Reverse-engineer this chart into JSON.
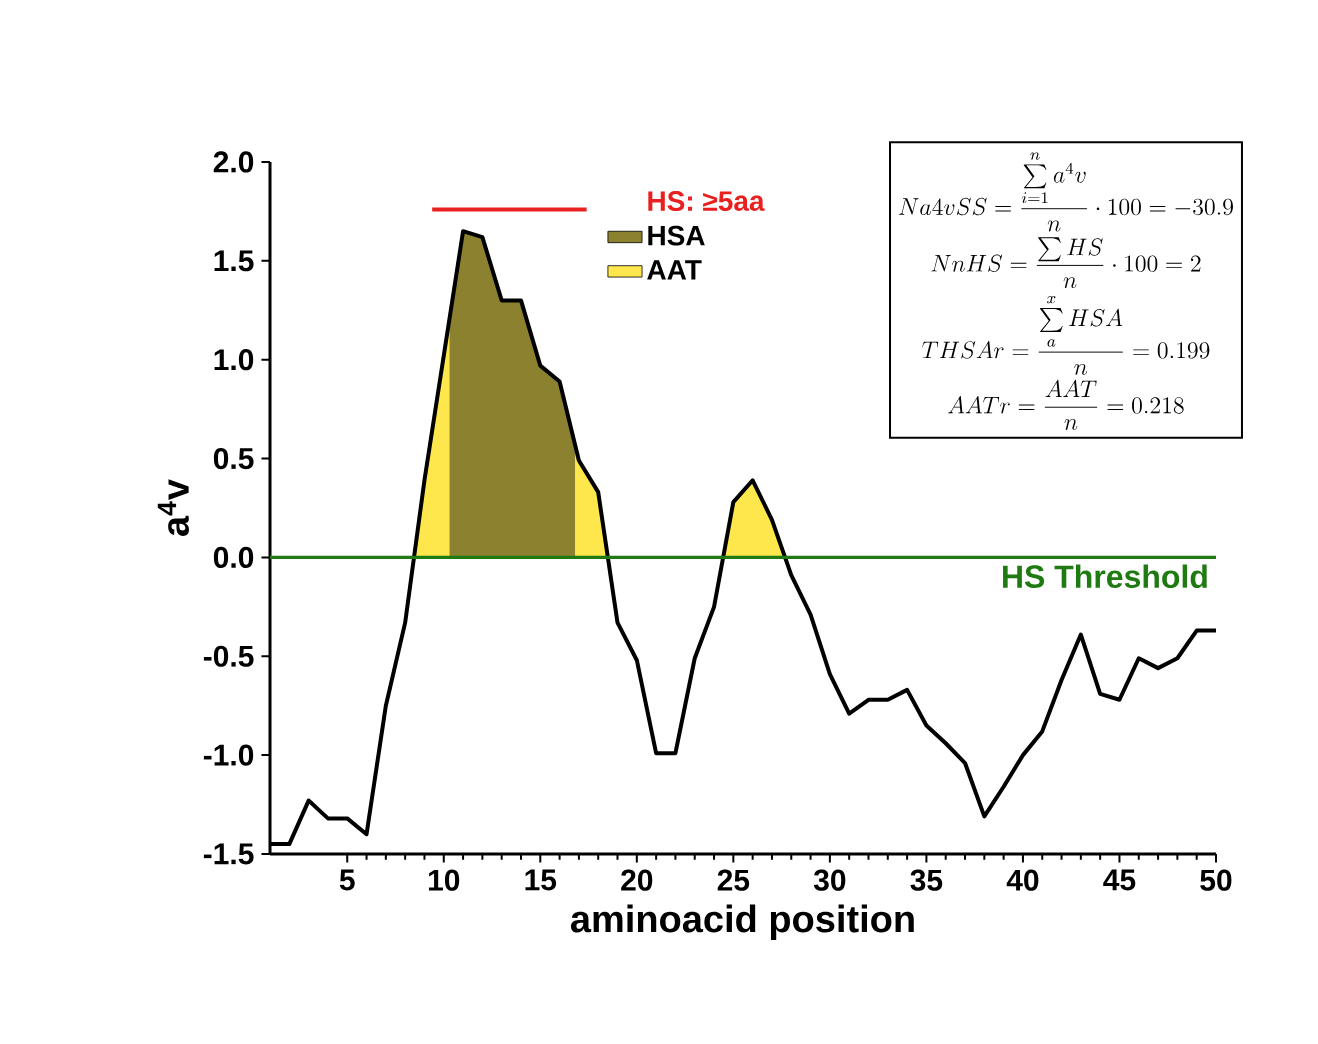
{
  "chart_data": {
    "type": "line",
    "xlabel": "aminoacid position",
    "ylabel": "a$^{4}$v",
    "x": [
      1,
      2,
      3,
      4,
      5,
      6,
      7,
      8,
      9,
      10,
      11,
      12,
      13,
      14,
      15,
      16,
      17,
      18,
      19,
      20,
      21,
      22,
      23,
      24,
      25,
      26,
      27,
      28,
      29,
      30,
      31,
      32,
      33,
      34,
      35,
      36,
      37,
      38,
      39,
      40,
      41,
      42,
      43,
      44,
      45,
      46,
      47,
      48,
      49,
      50
    ],
    "xlim": [
      1,
      50
    ],
    "xticks": [
      5,
      10,
      15,
      20,
      25,
      30,
      35,
      40,
      45,
      50
    ],
    "ylim": [
      -1.5,
      2.0
    ],
    "yticks": [
      {
        "value": -1.5,
        "label": "-1.5"
      },
      {
        "value": -1,
        "label": "-1.0"
      },
      {
        "value": -0.5,
        "label": "-0.5"
      },
      {
        "value": 0,
        "label": "0.0"
      },
      {
        "value": 0.5,
        "label": "0.5"
      },
      {
        "value": 1,
        "label": "1.0"
      },
      {
        "value": 1.5,
        "label": "1.5"
      },
      {
        "value": 2,
        "label": "2.0"
      }
    ],
    "legend": "top",
    "series": [
      {
        "type": "area",
        "name": "AAT",
        "color": "#fde74c",
        "x": [
          8.46,
          9,
          10,
          11,
          12,
          13,
          14,
          15,
          16,
          17,
          18,
          18.5,
          24.47,
          25,
          26,
          27,
          27.68
        ],
        "values": [
          0,
          0.39,
          1.02,
          1.65,
          1.62,
          1.3,
          1.3,
          0.97,
          0.89,
          0.49,
          0.33,
          0,
          0,
          0.28,
          0.39,
          0.19,
          0
        ]
      },
      {
        "type": "area",
        "name": "HSA",
        "color": "#8c812f",
        "x": [
          10.3,
          11,
          12,
          13,
          14,
          15,
          16,
          16.8
        ],
        "values": [
          1.2,
          1.65,
          1.62,
          1.3,
          1.3,
          0.97,
          0.89,
          0.57
        ]
      },
      {
        "type": "line",
        "name": "HS: ≥5aa",
        "color": "#e8201f",
        "x": [
          9.4,
          17.4
        ],
        "values": [
          1.76,
          1.76
        ]
      },
      {
        "color": "#000000",
        "values": [
          -1.45,
          -1.45,
          -1.23,
          -1.32,
          -1.32,
          -1.4,
          -0.75,
          -0.33,
          0.39,
          1.02,
          1.65,
          1.62,
          1.3,
          1.3,
          0.97,
          0.89,
          0.49,
          0.33,
          -0.33,
          -0.52,
          -0.99,
          -0.99,
          -0.51,
          -0.25,
          0.28,
          0.39,
          0.19,
          -0.09,
          -0.29,
          -0.59,
          -0.79,
          -0.72,
          -0.72,
          -0.67,
          -0.85,
          -0.94,
          -1.04,
          -1.31,
          -1.16,
          -1.0,
          -0.88,
          -0.62,
          -0.39,
          -0.69,
          -0.72,
          -0.51,
          -0.56,
          -0.51,
          -0.37,
          -0.37
        ]
      }
    ],
    "ref_lines": [
      {
        "axis": "y",
        "value": 0,
        "label": "HS Threshold",
        "color": "#1f7a12"
      }
    ],
    "annotations": [
      "Na4vSS=\\frac{\\sum\\limits_{i=1}^{n} a^{4}v}{n}\\cdot 100=-30.9",
      "NnHS=\\frac{\\sum HS}{n}\\cdot 100=2",
      "THSAr=\\frac{\\sum\\limits_{a}^{x} HSA}{n}=0.199",
      "AATr=\\frac{AAT}{n}=0.218"
    ]
  }
}
